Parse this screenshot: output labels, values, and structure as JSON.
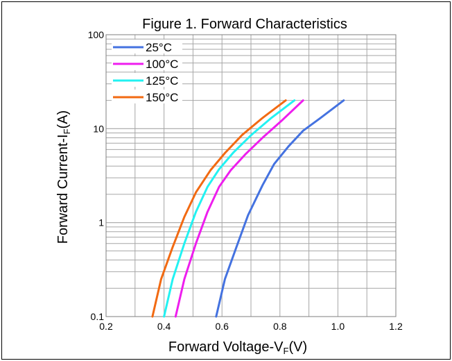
{
  "chart_data": {
    "type": "line",
    "title": "Figure 1. Forward Characteristics",
    "xlabel": {
      "main": "Forward Voltage-V",
      "sub": "F",
      "suffix": "(V)"
    },
    "ylabel": {
      "main": "Forward Current-I",
      "sub": "F",
      "suffix": "(A)"
    },
    "xlim": [
      0.2,
      1.2
    ],
    "ylim": [
      0.1,
      100
    ],
    "yscale": "log",
    "grid": true,
    "legend_position": "top-left",
    "x_ticks": [
      "0.2",
      "0.4",
      "0.6",
      "0.8",
      "1.0",
      "1.2"
    ],
    "y_ticks": [
      "0.1",
      "1",
      "10",
      "100"
    ],
    "series": [
      {
        "name": "25°C",
        "color": "#4472E0",
        "points": [
          [
            0.58,
            0.1
          ],
          [
            0.61,
            0.25
          ],
          [
            0.65,
            0.55
          ],
          [
            0.69,
            1.2
          ],
          [
            0.74,
            2.5
          ],
          [
            0.78,
            4.2
          ],
          [
            0.83,
            6.5
          ],
          [
            0.88,
            9.5
          ],
          [
            0.94,
            13
          ],
          [
            1.02,
            20
          ]
        ]
      },
      {
        "name": "100°C",
        "color": "#EE1EEE",
        "points": [
          [
            0.44,
            0.1
          ],
          [
            0.47,
            0.25
          ],
          [
            0.51,
            0.6
          ],
          [
            0.55,
            1.3
          ],
          [
            0.59,
            2.4
          ],
          [
            0.63,
            3.6
          ],
          [
            0.68,
            5.3
          ],
          [
            0.74,
            8
          ],
          [
            0.81,
            12.5
          ],
          [
            0.88,
            20
          ]
        ]
      },
      {
        "name": "125°C",
        "color": "#22F2F2",
        "points": [
          [
            0.4,
            0.1
          ],
          [
            0.43,
            0.25
          ],
          [
            0.47,
            0.6
          ],
          [
            0.51,
            1.3
          ],
          [
            0.55,
            2.4
          ],
          [
            0.59,
            3.7
          ],
          [
            0.64,
            5.6
          ],
          [
            0.7,
            8.5
          ],
          [
            0.77,
            13
          ],
          [
            0.85,
            20
          ]
        ]
      },
      {
        "name": "150°C",
        "color": "#F26A12",
        "points": [
          [
            0.36,
            0.1
          ],
          [
            0.39,
            0.25
          ],
          [
            0.43,
            0.55
          ],
          [
            0.47,
            1.15
          ],
          [
            0.51,
            2.1
          ],
          [
            0.56,
            3.6
          ],
          [
            0.61,
            5.5
          ],
          [
            0.67,
            8.6
          ],
          [
            0.74,
            13
          ],
          [
            0.82,
            20
          ]
        ]
      }
    ]
  }
}
